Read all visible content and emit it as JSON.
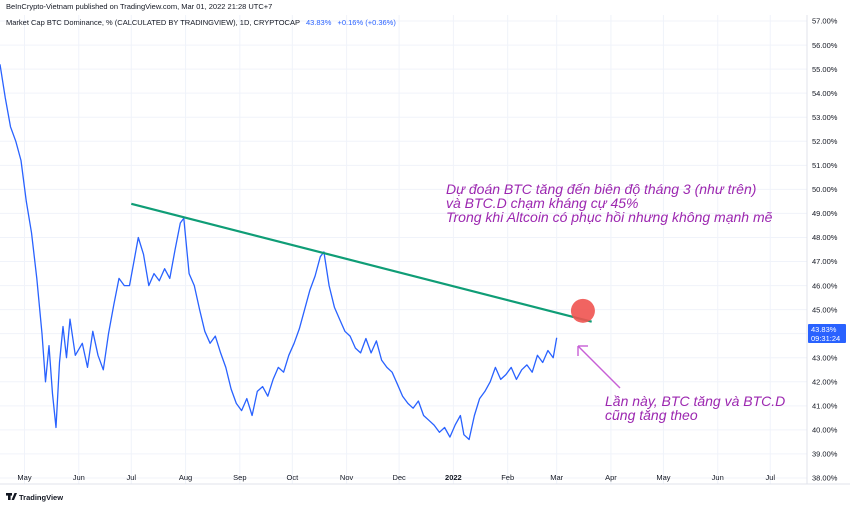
{
  "header": {
    "published": "BeInCrypto-Vietnam published on TradingView.com, Mar 01, 2022 21:28 UTC+7",
    "symbol_desc": "Market Cap BTC Dominance, % (CALCULATED BY TRADINGVIEW), 1D, CRYPTOCAP",
    "last_value": "43.83%",
    "change": "+0.16% (+0.36%)"
  },
  "price_tag": {
    "value": "43.83%",
    "countdown": "09:31:24"
  },
  "footer": {
    "logo_text": "TradingView"
  },
  "annotations": {
    "top_lines": [
      "Dự đoán BTC tăng đến biên độ tháng 3 (như trên)",
      "và BTC.D chạm kháng cự 45%",
      "Trong khi Altcoin có phục hồi nhưng không mạnh mẽ"
    ],
    "bottom_lines": [
      "Lần này, BTC tăng và BTC.D",
      "cũng tăng theo"
    ]
  },
  "colors": {
    "series": "#2962ff",
    "trendline": "#0f9d76",
    "annotation_text": "#9c27b0",
    "arrow": "#c75fd6",
    "marker": "#ef5350",
    "tag_bg": "#2962ff"
  },
  "chart_data": {
    "type": "line",
    "title": "",
    "xlabel": "",
    "ylabel": "",
    "ylim": [
      37.75,
      57.25
    ],
    "y_ticks": [
      "38.00%",
      "39.00%",
      "40.00%",
      "41.00%",
      "42.00%",
      "43.00%",
      "44.00%",
      "45.00%",
      "46.00%",
      "47.00%",
      "48.00%",
      "49.00%",
      "50.00%",
      "51.00%",
      "52.00%",
      "53.00%",
      "54.00%",
      "55.00%",
      "56.00%",
      "57.00%"
    ],
    "x_ticks": [
      "May",
      "Jun",
      "Jul",
      "Aug",
      "Sep",
      "Oct",
      "Nov",
      "Dec",
      "2022",
      "Feb",
      "Mar",
      "Apr",
      "May",
      "Jun",
      "Jul"
    ],
    "xlim": [
      "2021-04-17",
      "2022-07-22"
    ],
    "series": [
      {
        "values": [
          [
            "2021-04-17",
            55.2
          ],
          [
            "2021-04-20",
            53.8
          ],
          [
            "2021-04-23",
            52.6
          ],
          [
            "2021-04-26",
            52.0
          ],
          [
            "2021-04-29",
            51.2
          ],
          [
            "2021-05-02",
            49.5
          ],
          [
            "2021-05-05",
            48.2
          ],
          [
            "2021-05-08",
            46.3
          ],
          [
            "2021-05-11",
            44.0
          ],
          [
            "2021-05-13",
            42.0
          ],
          [
            "2021-05-15",
            43.5
          ],
          [
            "2021-05-17",
            41.5
          ],
          [
            "2021-05-19",
            40.1
          ],
          [
            "2021-05-21",
            42.8
          ],
          [
            "2021-05-23",
            44.3
          ],
          [
            "2021-05-25",
            43.0
          ],
          [
            "2021-05-27",
            44.6
          ],
          [
            "2021-05-30",
            43.1
          ],
          [
            "2021-06-03",
            43.6
          ],
          [
            "2021-06-06",
            42.6
          ],
          [
            "2021-06-09",
            44.1
          ],
          [
            "2021-06-12",
            43.1
          ],
          [
            "2021-06-15",
            42.5
          ],
          [
            "2021-06-18",
            44.0
          ],
          [
            "2021-06-21",
            45.2
          ],
          [
            "2021-06-24",
            46.3
          ],
          [
            "2021-06-27",
            46.0
          ],
          [
            "2021-06-30",
            46.0
          ],
          [
            "2021-07-03",
            47.2
          ],
          [
            "2021-07-05",
            48.0
          ],
          [
            "2021-07-08",
            47.3
          ],
          [
            "2021-07-11",
            46.0
          ],
          [
            "2021-07-14",
            46.5
          ],
          [
            "2021-07-17",
            46.2
          ],
          [
            "2021-07-20",
            46.7
          ],
          [
            "2021-07-23",
            46.3
          ],
          [
            "2021-07-26",
            47.5
          ],
          [
            "2021-07-29",
            48.6
          ],
          [
            "2021-07-31",
            48.8
          ],
          [
            "2021-08-03",
            46.5
          ],
          [
            "2021-08-06",
            46.0
          ],
          [
            "2021-08-09",
            45.0
          ],
          [
            "2021-08-12",
            44.1
          ],
          [
            "2021-08-15",
            43.6
          ],
          [
            "2021-08-18",
            43.9
          ],
          [
            "2021-08-21",
            43.2
          ],
          [
            "2021-08-24",
            42.6
          ],
          [
            "2021-08-27",
            41.7
          ],
          [
            "2021-08-30",
            41.1
          ],
          [
            "2021-09-02",
            40.8
          ],
          [
            "2021-09-05",
            41.3
          ],
          [
            "2021-09-08",
            40.6
          ],
          [
            "2021-09-11",
            41.6
          ],
          [
            "2021-09-14",
            41.8
          ],
          [
            "2021-09-17",
            41.4
          ],
          [
            "2021-09-20",
            42.1
          ],
          [
            "2021-09-23",
            42.6
          ],
          [
            "2021-09-26",
            42.4
          ],
          [
            "2021-09-29",
            43.1
          ],
          [
            "2021-10-02",
            43.6
          ],
          [
            "2021-10-05",
            44.2
          ],
          [
            "2021-10-08",
            45.0
          ],
          [
            "2021-10-11",
            45.8
          ],
          [
            "2021-10-14",
            46.4
          ],
          [
            "2021-10-17",
            47.2
          ],
          [
            "2021-10-19",
            47.4
          ],
          [
            "2021-10-22",
            46.0
          ],
          [
            "2021-10-25",
            45.1
          ],
          [
            "2021-10-28",
            44.6
          ],
          [
            "2021-10-31",
            44.1
          ],
          [
            "2021-11-03",
            43.9
          ],
          [
            "2021-11-06",
            43.4
          ],
          [
            "2021-11-09",
            43.2
          ],
          [
            "2021-11-12",
            43.8
          ],
          [
            "2021-11-15",
            43.2
          ],
          [
            "2021-11-18",
            43.7
          ],
          [
            "2021-11-21",
            42.9
          ],
          [
            "2021-11-24",
            42.6
          ],
          [
            "2021-11-27",
            42.4
          ],
          [
            "2021-11-30",
            41.9
          ],
          [
            "2021-12-03",
            41.4
          ],
          [
            "2021-12-06",
            41.1
          ],
          [
            "2021-12-09",
            40.9
          ],
          [
            "2021-12-12",
            41.2
          ],
          [
            "2021-12-15",
            40.6
          ],
          [
            "2021-12-18",
            40.4
          ],
          [
            "2021-12-21",
            40.2
          ],
          [
            "2021-12-24",
            39.9
          ],
          [
            "2021-12-27",
            40.1
          ],
          [
            "2021-12-30",
            39.7
          ],
          [
            "2022-01-02",
            40.2
          ],
          [
            "2022-01-05",
            40.6
          ],
          [
            "2022-01-07",
            39.8
          ],
          [
            "2022-01-10",
            39.6
          ],
          [
            "2022-01-13",
            40.6
          ],
          [
            "2022-01-16",
            41.3
          ],
          [
            "2022-01-19",
            41.6
          ],
          [
            "2022-01-22",
            42.0
          ],
          [
            "2022-01-25",
            42.6
          ],
          [
            "2022-01-28",
            42.1
          ],
          [
            "2022-01-31",
            42.3
          ],
          [
            "2022-02-03",
            42.6
          ],
          [
            "2022-02-06",
            42.1
          ],
          [
            "2022-02-09",
            42.5
          ],
          [
            "2022-02-12",
            42.7
          ],
          [
            "2022-02-15",
            42.4
          ],
          [
            "2022-02-18",
            43.1
          ],
          [
            "2022-02-21",
            42.8
          ],
          [
            "2022-02-24",
            43.3
          ],
          [
            "2022-02-27",
            43.0
          ],
          [
            "2022-03-01",
            43.83
          ]
        ]
      },
      {
        "name": "",
        "values": [
          [
            "2021-07-01",
            49.4
          ],
          [
            "2022-03-21",
            44.5
          ]
        ]
      }
    ],
    "annotations": [
      "Dự đoán BTC tăng đến biên độ tháng 3 (như trên)",
      "và BTC.D chạm kháng cự 45%",
      "Trong khi Altcoin có phục hồi nhưng không mạnh mẽ",
      "Lần này, BTC tăng và BTC.D",
      "cũng tăng theo"
    ],
    "highlight_point": [
      "2022-03-16",
      44.95
    ],
    "grid": true,
    "legend": "none"
  }
}
